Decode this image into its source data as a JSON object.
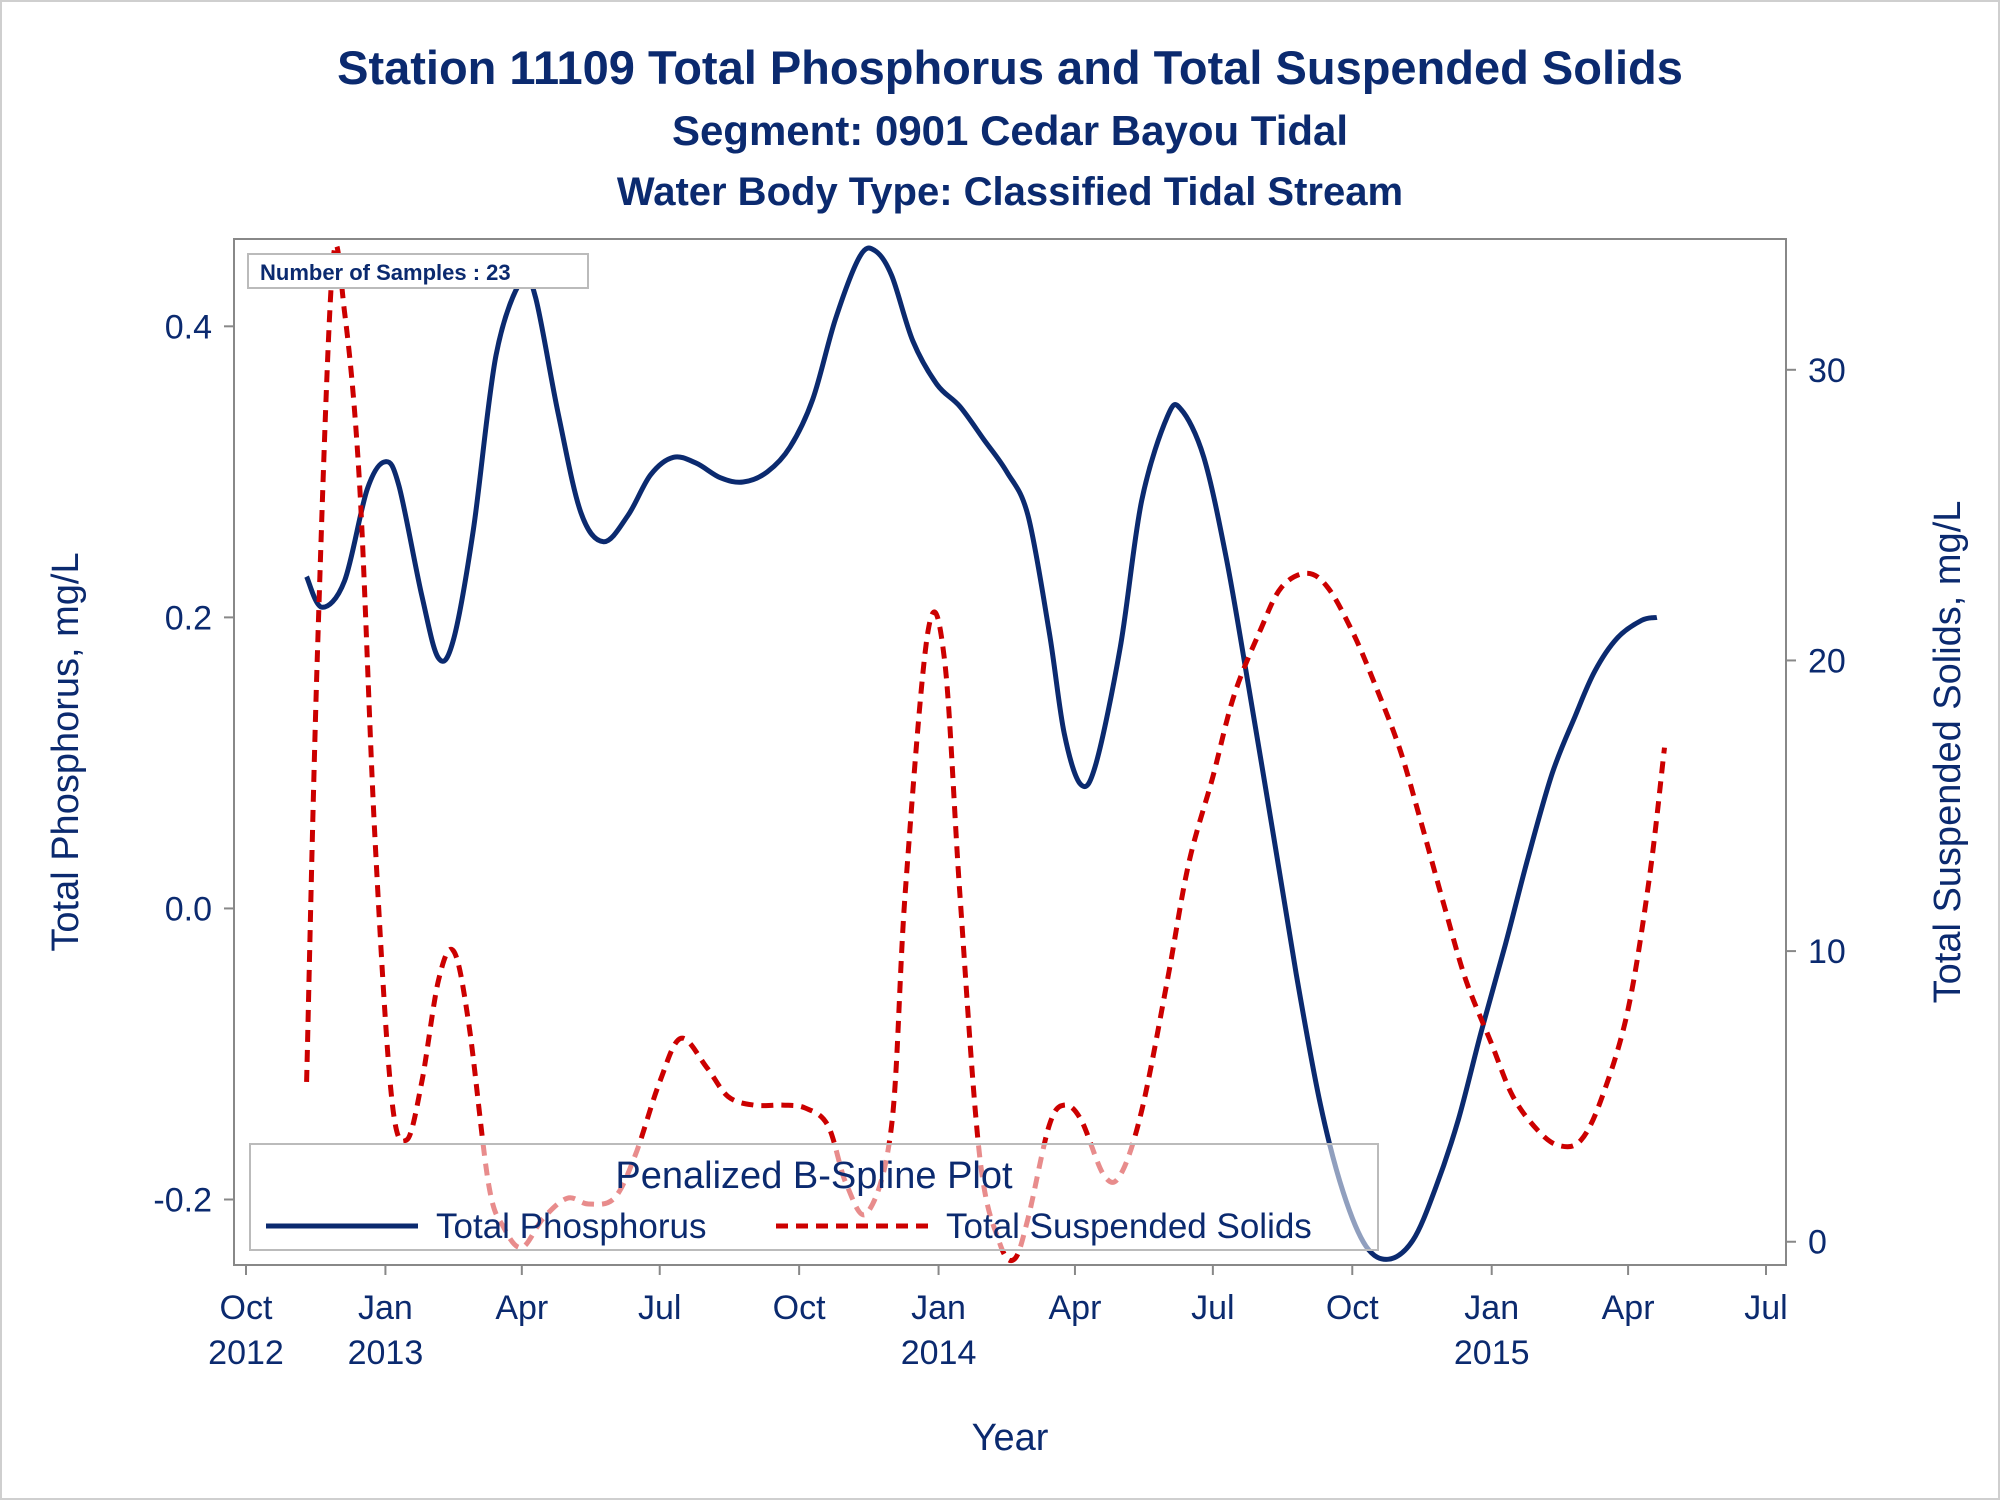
{
  "titles": {
    "line1": "Station 11109  Total Phosphorus and Total Suspended Solids",
    "line2": "Segment: 0901  Cedar Bayou Tidal",
    "line3": "Water Body Type: Classified Tidal Stream"
  },
  "inset_label": "Number of Samples : 23",
  "legend": {
    "title": "Penalized B-Spline Plot",
    "placement": "bottom-inside",
    "items": [
      {
        "label": "Total Phosphorus",
        "color": "#0b2a6f",
        "style": "solid"
      },
      {
        "label": "Total Suspended Solids",
        "color": "#cc0000",
        "style": "dashed"
      }
    ]
  },
  "chart_data": {
    "type": "line",
    "xlabel": "Year",
    "ylabel": "Total Phosphorus, mg/L",
    "y2label": "Total Suspended Solids, mg/L",
    "xlim": [
      "2012-10-01",
      "2015-07-01"
    ],
    "ylim": [
      -0.245,
      0.46
    ],
    "y2lim": [
      -0.8,
      34.5
    ],
    "x_ticks": [
      {
        "date": "2012-10-01",
        "label1": "Oct",
        "label2": "2012"
      },
      {
        "date": "2013-01-01",
        "label1": "Jan",
        "label2": "2013"
      },
      {
        "date": "2013-04-01",
        "label1": "Apr",
        "label2": ""
      },
      {
        "date": "2013-07-01",
        "label1": "Jul",
        "label2": ""
      },
      {
        "date": "2013-10-01",
        "label1": "Oct",
        "label2": ""
      },
      {
        "date": "2014-01-01",
        "label1": "Jan",
        "label2": "2014"
      },
      {
        "date": "2014-04-01",
        "label1": "Apr",
        "label2": ""
      },
      {
        "date": "2014-07-01",
        "label1": "Jul",
        "label2": ""
      },
      {
        "date": "2014-10-01",
        "label1": "Oct",
        "label2": ""
      },
      {
        "date": "2015-01-01",
        "label1": "Jan",
        "label2": "2015"
      },
      {
        "date": "2015-04-01",
        "label1": "Apr",
        "label2": ""
      },
      {
        "date": "2015-07-01",
        "label1": "Jul",
        "label2": ""
      }
    ],
    "y_ticks": [
      {
        "value": 0.4,
        "label": "0.4"
      },
      {
        "value": 0.2,
        "label": "0.2"
      },
      {
        "value": 0.0,
        "label": "0.0"
      },
      {
        "value": -0.2,
        "label": "-0.2"
      }
    ],
    "y2_ticks": [
      {
        "value": 30,
        "label": "30"
      },
      {
        "value": 20,
        "label": "20"
      },
      {
        "value": 10,
        "label": "10"
      },
      {
        "value": 0,
        "label": "0"
      }
    ],
    "grid": false,
    "series": [
      {
        "name": "Total Phosphorus",
        "axis": "left",
        "color": "#0b2a6f",
        "dash": "solid",
        "points": [
          [
            "2012-11-10",
            0.228
          ],
          [
            "2012-11-20",
            0.207
          ],
          [
            "2012-12-05",
            0.225
          ],
          [
            "2012-12-20",
            0.288
          ],
          [
            "2013-01-01",
            0.307
          ],
          [
            "2013-01-10",
            0.29
          ],
          [
            "2013-01-25",
            0.215
          ],
          [
            "2013-02-05",
            0.172
          ],
          [
            "2013-02-15",
            0.185
          ],
          [
            "2013-02-28",
            0.26
          ],
          [
            "2013-03-15",
            0.38
          ],
          [
            "2013-04-01",
            0.432
          ],
          [
            "2013-04-10",
            0.42
          ],
          [
            "2013-04-25",
            0.34
          ],
          [
            "2013-05-10",
            0.272
          ],
          [
            "2013-05-25",
            0.252
          ],
          [
            "2013-06-10",
            0.27
          ],
          [
            "2013-06-25",
            0.298
          ],
          [
            "2013-07-10",
            0.31
          ],
          [
            "2013-07-25",
            0.306
          ],
          [
            "2013-08-10",
            0.296
          ],
          [
            "2013-08-25",
            0.293
          ],
          [
            "2013-09-10",
            0.3
          ],
          [
            "2013-09-25",
            0.317
          ],
          [
            "2013-10-10",
            0.35
          ],
          [
            "2013-10-25",
            0.405
          ],
          [
            "2013-11-10",
            0.448
          ],
          [
            "2013-11-20",
            0.452
          ],
          [
            "2013-12-01",
            0.435
          ],
          [
            "2013-12-15",
            0.39
          ],
          [
            "2013-12-31",
            0.36
          ],
          [
            "2014-01-15",
            0.345
          ],
          [
            "2014-01-31",
            0.322
          ],
          [
            "2014-02-15",
            0.3
          ],
          [
            "2014-03-01",
            0.27
          ],
          [
            "2014-03-15",
            0.19
          ],
          [
            "2014-03-25",
            0.12
          ],
          [
            "2014-04-05",
            0.085
          ],
          [
            "2014-04-15",
            0.1
          ],
          [
            "2014-05-01",
            0.18
          ],
          [
            "2014-05-15",
            0.28
          ],
          [
            "2014-06-01",
            0.338
          ],
          [
            "2014-06-10",
            0.343
          ],
          [
            "2014-06-25",
            0.31
          ],
          [
            "2014-07-10",
            0.24
          ],
          [
            "2014-07-25",
            0.15
          ],
          [
            "2014-08-10",
            0.05
          ],
          [
            "2014-08-25",
            -0.045
          ],
          [
            "2014-09-10",
            -0.135
          ],
          [
            "2014-09-25",
            -0.195
          ],
          [
            "2014-10-10",
            -0.232
          ],
          [
            "2014-10-25",
            -0.241
          ],
          [
            "2014-11-10",
            -0.228
          ],
          [
            "2014-11-25",
            -0.192
          ],
          [
            "2014-12-10",
            -0.145
          ],
          [
            "2014-12-25",
            -0.085
          ],
          [
            "2015-01-10",
            -0.025
          ],
          [
            "2015-01-25",
            0.035
          ],
          [
            "2015-02-10",
            0.093
          ],
          [
            "2015-02-25",
            0.132
          ],
          [
            "2015-03-10",
            0.163
          ],
          [
            "2015-03-25",
            0.186
          ],
          [
            "2015-04-10",
            0.198
          ],
          [
            "2015-04-20",
            0.2
          ]
        ]
      },
      {
        "name": "Total Suspended Solids",
        "axis": "right",
        "color": "#cc0000",
        "dash": "dashed",
        "points": [
          [
            "2012-11-10",
            5.5
          ],
          [
            "2012-11-17",
            20.0
          ],
          [
            "2012-11-27",
            33.5
          ],
          [
            "2012-12-05",
            32.0
          ],
          [
            "2012-12-15",
            26.0
          ],
          [
            "2012-12-25",
            14.0
          ],
          [
            "2013-01-05",
            5.0
          ],
          [
            "2013-01-15",
            3.5
          ],
          [
            "2013-01-25",
            5.5
          ],
          [
            "2013-02-05",
            9.0
          ],
          [
            "2013-02-15",
            10.0
          ],
          [
            "2013-02-25",
            7.5
          ],
          [
            "2013-03-10",
            2.0
          ],
          [
            "2013-03-20",
            0.5
          ],
          [
            "2013-04-01",
            -0.2
          ],
          [
            "2013-04-15",
            0.8
          ],
          [
            "2013-05-01",
            1.5
          ],
          [
            "2013-05-15",
            1.3
          ],
          [
            "2013-06-01",
            1.5
          ],
          [
            "2013-06-15",
            3.0
          ],
          [
            "2013-07-01",
            5.5
          ],
          [
            "2013-07-15",
            7.0
          ],
          [
            "2013-08-01",
            6.0
          ],
          [
            "2013-08-15",
            5.0
          ],
          [
            "2013-09-01",
            4.7
          ],
          [
            "2013-09-20",
            4.7
          ],
          [
            "2013-10-05",
            4.6
          ],
          [
            "2013-10-20",
            4.0
          ],
          [
            "2013-11-01",
            2.0
          ],
          [
            "2013-11-15",
            1.0
          ],
          [
            "2013-12-01",
            4.0
          ],
          [
            "2013-12-10",
            12.0
          ],
          [
            "2013-12-25",
            21.0
          ],
          [
            "2014-01-05",
            20.0
          ],
          [
            "2014-01-15",
            12.0
          ],
          [
            "2014-01-28",
            3.0
          ],
          [
            "2014-02-10",
            0.0
          ],
          [
            "2014-02-20",
            -0.6
          ],
          [
            "2014-03-01",
            0.8
          ],
          [
            "2014-03-15",
            4.0
          ],
          [
            "2014-03-25",
            4.7
          ],
          [
            "2014-04-05",
            4.2
          ],
          [
            "2014-04-20",
            2.3
          ],
          [
            "2014-05-01",
            2.3
          ],
          [
            "2014-05-15",
            4.5
          ],
          [
            "2014-06-01",
            9.0
          ],
          [
            "2014-06-15",
            13.0
          ],
          [
            "2014-07-01",
            16.0
          ],
          [
            "2014-07-15",
            18.8
          ],
          [
            "2014-08-01",
            21.0
          ],
          [
            "2014-08-15",
            22.5
          ],
          [
            "2014-09-01",
            23.0
          ],
          [
            "2014-09-15",
            22.5
          ],
          [
            "2014-10-01",
            21.0
          ],
          [
            "2014-10-15",
            19.3
          ],
          [
            "2014-11-01",
            17.0
          ],
          [
            "2014-11-15",
            14.5
          ],
          [
            "2014-12-01",
            11.5
          ],
          [
            "2014-12-15",
            9.0
          ],
          [
            "2015-01-01",
            6.8
          ],
          [
            "2015-01-15",
            5.0
          ],
          [
            "2015-02-01",
            3.8
          ],
          [
            "2015-02-15",
            3.3
          ],
          [
            "2015-03-01",
            3.5
          ],
          [
            "2015-03-15",
            5.0
          ],
          [
            "2015-04-01",
            8.0
          ],
          [
            "2015-04-15",
            12.5
          ],
          [
            "2015-04-25",
            17.0
          ]
        ]
      }
    ]
  }
}
